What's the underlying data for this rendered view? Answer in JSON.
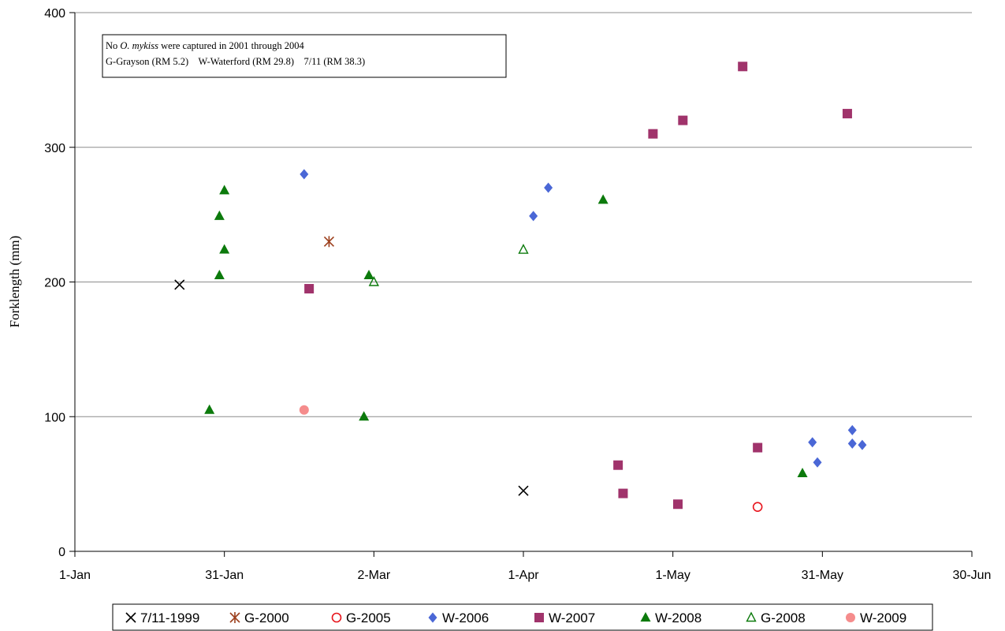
{
  "chart_data": {
    "type": "scatter",
    "title": "",
    "xlabel": "",
    "ylabel": "Forklength (mm)",
    "ylim": [
      0,
      400
    ],
    "yticks": [
      0,
      100,
      200,
      300,
      400
    ],
    "xlim": [
      0,
      180
    ],
    "xticks": [
      {
        "value": 0,
        "label": "1-Jan"
      },
      {
        "value": 30,
        "label": "31-Jan"
      },
      {
        "value": 60,
        "label": "2-Mar"
      },
      {
        "value": 90,
        "label": "1-Apr"
      },
      {
        "value": 120,
        "label": "1-May"
      },
      {
        "value": 150,
        "label": "31-May"
      },
      {
        "value": 180,
        "label": "30-Jun"
      }
    ],
    "grid": "horizontal",
    "legend_position": "bottom",
    "annotation": {
      "line1_pre": "No ",
      "line1_species": "O. mykiss",
      "line1_post": "  were captured in 2001 through 2004",
      "line2": "G-Grayson (RM 5.2)    W-Waterford (RM 29.8)    7/11 (RM 38.3)"
    },
    "series": [
      {
        "name": "7/11-1999",
        "marker": "x",
        "color": "#000000",
        "points": [
          {
            "x": 21,
            "y": 198
          },
          {
            "x": 90,
            "y": 45
          }
        ]
      },
      {
        "name": "G-2000",
        "marker": "star",
        "color": "#9c3f1c",
        "points": [
          {
            "x": 51,
            "y": 230
          }
        ]
      },
      {
        "name": "G-2005",
        "marker": "circle-open",
        "color": "#e8141c",
        "points": [
          {
            "x": 137,
            "y": 33
          }
        ]
      },
      {
        "name": "W-2006",
        "marker": "diamond",
        "color": "#4a67d6",
        "points": [
          {
            "x": 46,
            "y": 280
          },
          {
            "x": 92,
            "y": 249
          },
          {
            "x": 95,
            "y": 270
          },
          {
            "x": 148,
            "y": 81
          },
          {
            "x": 149,
            "y": 66
          },
          {
            "x": 156,
            "y": 90
          },
          {
            "x": 156,
            "y": 80
          },
          {
            "x": 158,
            "y": 79
          }
        ]
      },
      {
        "name": "W-2007",
        "marker": "square",
        "color": "#a0336b",
        "points": [
          {
            "x": 47,
            "y": 195
          },
          {
            "x": 109,
            "y": 64
          },
          {
            "x": 110,
            "y": 43
          },
          {
            "x": 116,
            "y": 310
          },
          {
            "x": 121,
            "y": 35
          },
          {
            "x": 122,
            "y": 320
          },
          {
            "x": 134,
            "y": 360
          },
          {
            "x": 137,
            "y": 77
          },
          {
            "x": 155,
            "y": 325
          }
        ]
      },
      {
        "name": "W-2008",
        "marker": "triangle",
        "color": "#0c7a0c",
        "points": [
          {
            "x": 27,
            "y": 105
          },
          {
            "x": 29,
            "y": 249
          },
          {
            "x": 29,
            "y": 205
          },
          {
            "x": 30,
            "y": 268
          },
          {
            "x": 30,
            "y": 224
          },
          {
            "x": 58,
            "y": 100
          },
          {
            "x": 59,
            "y": 205
          },
          {
            "x": 106,
            "y": 261
          },
          {
            "x": 146,
            "y": 58
          }
        ]
      },
      {
        "name": "G-2008",
        "marker": "triangle-open",
        "color": "#0c7a0c",
        "points": [
          {
            "x": 60,
            "y": 200
          },
          {
            "x": 90,
            "y": 224
          }
        ]
      },
      {
        "name": "W-2009",
        "marker": "circle",
        "color": "#f58c8c",
        "points": [
          {
            "x": 46,
            "y": 105
          }
        ]
      }
    ]
  }
}
